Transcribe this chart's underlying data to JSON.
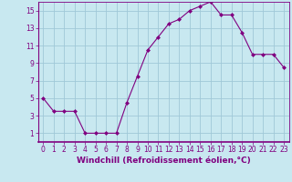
{
  "x": [
    0,
    1,
    2,
    3,
    4,
    5,
    6,
    7,
    8,
    9,
    10,
    11,
    12,
    13,
    14,
    15,
    16,
    17,
    18,
    19,
    20,
    21,
    22,
    23
  ],
  "y": [
    5,
    3.5,
    3.5,
    3.5,
    1,
    1,
    1,
    1,
    4.5,
    7.5,
    10.5,
    12,
    13.5,
    14,
    15,
    15.5,
    16,
    14.5,
    14.5,
    12.5,
    10,
    10,
    10,
    8.5
  ],
  "line_color": "#800080",
  "marker": "D",
  "marker_size": 2,
  "bg_color": "#c8e8f0",
  "grid_color": "#a0c8d8",
  "xlabel": "Windchill (Refroidissement éolien,°C)",
  "xlabel_color": "#800080",
  "tick_color": "#800080",
  "ylim": [
    0,
    16
  ],
  "xlim": [
    -0.5,
    23.5
  ],
  "yticks": [
    1,
    3,
    5,
    7,
    9,
    11,
    13,
    15
  ],
  "xticks": [
    0,
    1,
    2,
    3,
    4,
    5,
    6,
    7,
    8,
    9,
    10,
    11,
    12,
    13,
    14,
    15,
    16,
    17,
    18,
    19,
    20,
    21,
    22,
    23
  ],
  "tick_fontsize": 5.5,
  "xlabel_fontsize": 6.5
}
